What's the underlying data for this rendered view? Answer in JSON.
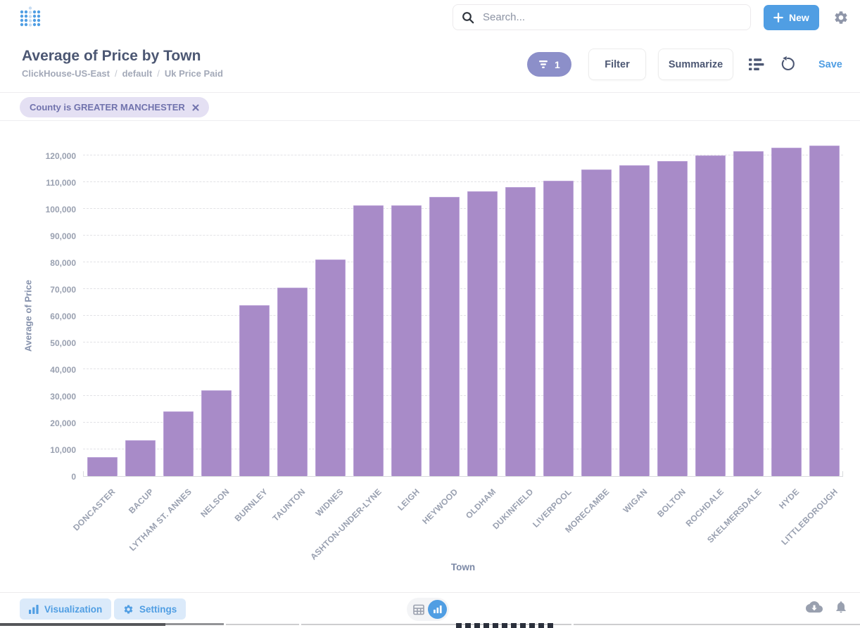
{
  "topbar": {
    "search_placeholder": "Search...",
    "new_button_label": "New"
  },
  "question_header": {
    "title": "Average of Price by Town",
    "breadcrumb": [
      "ClickHouse-US-East",
      "default",
      "Uk Price Paid"
    ],
    "breadcrumb_separator": "/",
    "filter_count_badge": "1",
    "filter_button_label": "Filter",
    "summarize_button_label": "Summarize",
    "save_button_label": "Save"
  },
  "filter_bar": {
    "chips": [
      {
        "label": "County is GREATER MANCHESTER"
      }
    ]
  },
  "chart_data": {
    "type": "bar",
    "title": "Average of Price by Town",
    "xlabel": "Town",
    "ylabel": "Average of Price",
    "categories": [
      "DONCASTER",
      "BACUP",
      "LYTHAM ST. ANNES",
      "NELSON",
      "BURNLEY",
      "TAUNTON",
      "WIDNES",
      "ASHTON-UNDER-LYNE",
      "LEIGH",
      "HEYWOOD",
      "OLDHAM",
      "DUKINFIELD",
      "LIVERPOOL",
      "MORECAMBE",
      "WIGAN",
      "BOLTON",
      "ROCHDALE",
      "SKELMERSDALE",
      "HYDE",
      "LITTLEBOROUGH"
    ],
    "values": [
      7000,
      13500,
      24200,
      32000,
      64000,
      70500,
      81000,
      101200,
      101400,
      104600,
      106600,
      108200,
      110600,
      114700,
      116300,
      117900,
      120000,
      121600,
      122800,
      123600
    ],
    "ylim": [
      0,
      126000
    ],
    "ytick_step": 10000,
    "ytick_max": 120000,
    "grid": "horizontal-dashed",
    "legend": "none",
    "bar_color": "#A88BC8"
  },
  "footer": {
    "visualization_button_label": "Visualization",
    "settings_button_label": "Settings"
  },
  "colors": {
    "accent_blue": "#509EE3",
    "bar_purple": "#A88BC8",
    "filter_pill_purple": "#8C8FC9",
    "chip_bg": "#E4E0F3",
    "chip_text": "#7173AD",
    "heading_text": "#4C5773",
    "muted_text": "#99A0B0"
  }
}
